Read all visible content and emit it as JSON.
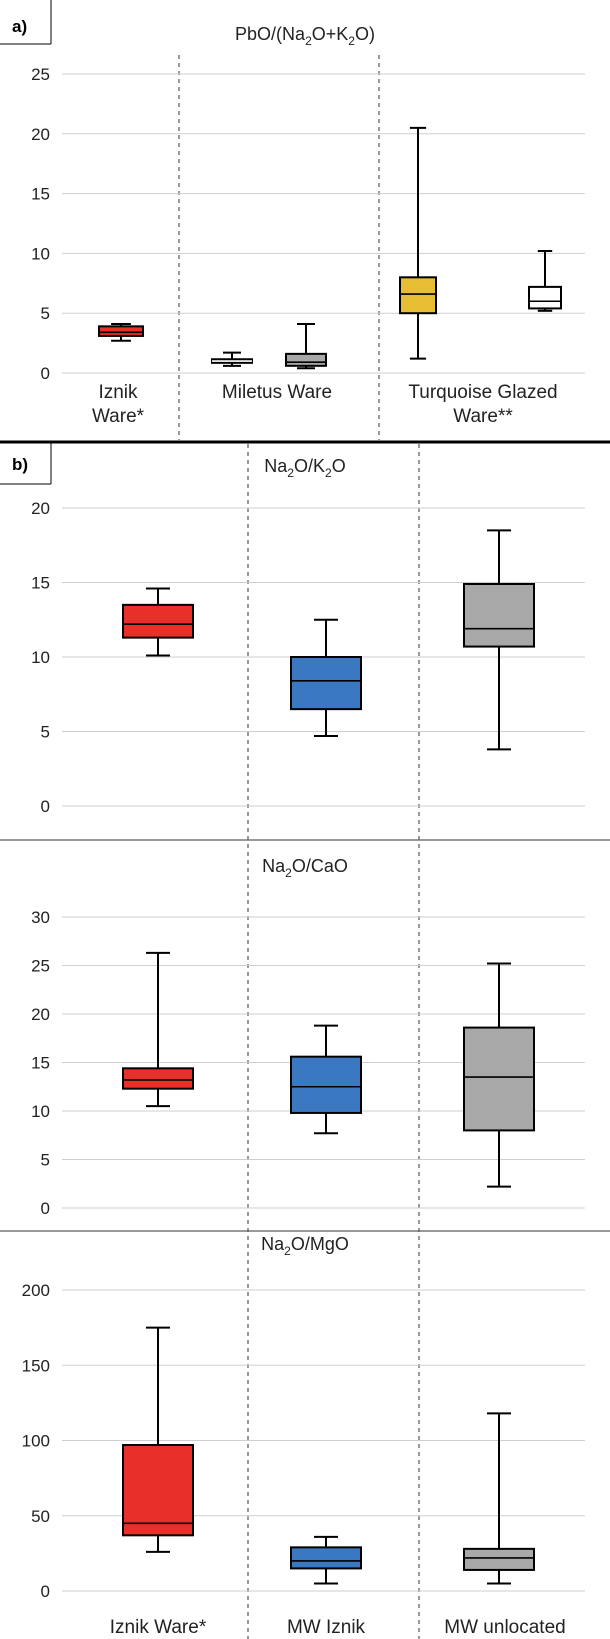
{
  "panel_labels": {
    "a": "a)",
    "b": "b)"
  },
  "colors": {
    "iznik": "#e8302a",
    "miletus": "#2b2b2b",
    "miletus_grey": "#a8a8a8",
    "turquoise": "#e7bd33",
    "white": "#ffffff",
    "mw_iznik": "#3a78c2",
    "mw_unlocated": "#a8a8a8"
  },
  "category_labels": {
    "a": [
      {
        "lines": [
          "Iznik",
          "Ware*"
        ]
      },
      {
        "lines": [
          "Miletus Ware"
        ]
      },
      {
        "lines": [
          "Turquoise Glazed",
          "Ware**"
        ]
      }
    ],
    "b": [
      {
        "lines": [
          "Iznik Ware*"
        ]
      },
      {
        "lines": [
          "MW Iznik"
        ]
      },
      {
        "lines": [
          "MW unlocated"
        ]
      }
    ]
  },
  "chart_data": [
    {
      "type": "box",
      "panel": "a",
      "title_parts": [
        [
          "PbO/(Na",
          "n"
        ],
        [
          "2",
          "s"
        ],
        [
          "O+K",
          "n"
        ],
        [
          "2",
          "s"
        ],
        [
          "O)",
          "n"
        ]
      ],
      "ylim": [
        0,
        25
      ],
      "yticks": [
        0,
        5,
        10,
        15,
        20,
        25
      ],
      "grid": true,
      "boxes": [
        {
          "group": "Iznik Ware*",
          "color": "#e8302a",
          "min": 2.7,
          "q1": 3.1,
          "median": 3.4,
          "q3": 3.9,
          "max": 4.1
        },
        {
          "group": "Miletus Ware",
          "color": "#2b2b2b",
          "min": 0.6,
          "q1": 0.85,
          "median": 1.0,
          "q3": 1.15,
          "max": 1.7
        },
        {
          "group": "Miletus Ware",
          "color": "#a8a8a8",
          "min": 0.4,
          "q1": 0.6,
          "median": 0.9,
          "q3": 1.6,
          "max": 4.1
        },
        {
          "group": "Turquoise Glazed Ware**",
          "color": "#e7bd33",
          "min": 1.2,
          "q1": 5.0,
          "median": 6.6,
          "q3": 8.0,
          "max": 20.5
        },
        {
          "group": "Turquoise Glazed Ware**",
          "color": "#ffffff",
          "min": 5.2,
          "q1": 5.4,
          "median": 6.0,
          "q3": 7.2,
          "max": 10.2
        }
      ]
    },
    {
      "type": "box",
      "panel": "b1",
      "title_parts": [
        [
          "Na",
          "n"
        ],
        [
          "2",
          "s"
        ],
        [
          "O/K",
          "n"
        ],
        [
          "2",
          "s"
        ],
        [
          "O",
          "n"
        ]
      ],
      "ylim": [
        0,
        20
      ],
      "yticks": [
        0,
        5,
        10,
        15,
        20
      ],
      "grid": true,
      "boxes": [
        {
          "group": "Iznik Ware*",
          "color": "#e8302a",
          "min": 10.1,
          "q1": 11.3,
          "median": 12.2,
          "q3": 13.5,
          "max": 14.6
        },
        {
          "group": "MW Iznik",
          "color": "#3a78c2",
          "min": 4.7,
          "q1": 6.5,
          "median": 8.4,
          "q3": 10.0,
          "max": 12.5
        },
        {
          "group": "MW unlocated",
          "color": "#a8a8a8",
          "min": 3.8,
          "q1": 10.7,
          "median": 11.9,
          "q3": 14.9,
          "max": 18.5
        }
      ]
    },
    {
      "type": "box",
      "panel": "b2",
      "title_parts": [
        [
          "Na",
          "n"
        ],
        [
          "2",
          "s"
        ],
        [
          "O/CaO",
          "n"
        ]
      ],
      "ylim": [
        0,
        30
      ],
      "yticks": [
        0,
        5,
        10,
        15,
        20,
        25,
        30
      ],
      "grid": true,
      "boxes": [
        {
          "group": "Iznik Ware*",
          "color": "#e8302a",
          "min": 10.5,
          "q1": 12.3,
          "median": 13.2,
          "q3": 14.4,
          "max": 26.3
        },
        {
          "group": "MW Iznik",
          "color": "#3a78c2",
          "min": 7.7,
          "q1": 9.8,
          "median": 12.5,
          "q3": 15.6,
          "max": 18.8
        },
        {
          "group": "MW unlocated",
          "color": "#a8a8a8",
          "min": 2.2,
          "q1": 8.0,
          "median": 13.5,
          "q3": 18.6,
          "max": 25.2
        }
      ]
    },
    {
      "type": "box",
      "panel": "b3",
      "title_parts": [
        [
          "Na",
          "n"
        ],
        [
          "2",
          "s"
        ],
        [
          "O/MgO",
          "n"
        ]
      ],
      "ylim": [
        0,
        200
      ],
      "yticks": [
        0,
        50,
        100,
        150,
        200
      ],
      "grid": true,
      "boxes": [
        {
          "group": "Iznik Ware*",
          "color": "#e8302a",
          "min": 26,
          "q1": 37,
          "median": 45,
          "q3": 97,
          "max": 175
        },
        {
          "group": "MW Iznik",
          "color": "#3a78c2",
          "min": 5,
          "q1": 15,
          "median": 20,
          "q3": 29,
          "max": 36
        },
        {
          "group": "MW unlocated",
          "color": "#a8a8a8",
          "min": 5,
          "q1": 14,
          "median": 22,
          "q3": 28,
          "max": 118
        }
      ]
    }
  ]
}
